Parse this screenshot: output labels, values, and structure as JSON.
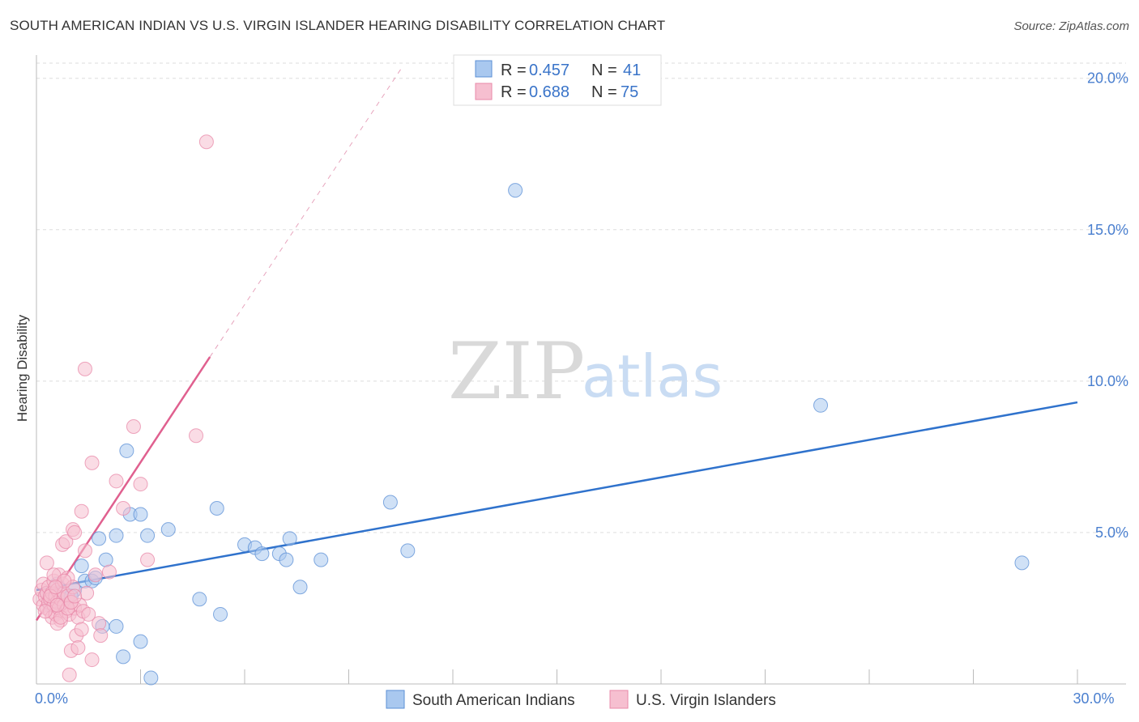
{
  "title": "SOUTH AMERICAN INDIAN VS U.S. VIRGIN ISLANDER HEARING DISABILITY CORRELATION CHART",
  "source": "Source: ZipAtlas.com",
  "watermark": {
    "zip": "ZIP",
    "atlas": "atlas"
  },
  "chart_data": {
    "type": "scatter",
    "ylabel": "Hearing Disability",
    "xlim": [
      0,
      30
    ],
    "ylim": [
      0,
      20.5
    ],
    "x_tick_labels": [
      {
        "value": 0,
        "label": "0.0%"
      },
      {
        "value": 30,
        "label": "30.0%"
      }
    ],
    "y_tick_labels": [
      {
        "value": 5,
        "label": "5.0%"
      },
      {
        "value": 10,
        "label": "10.0%"
      },
      {
        "value": 15,
        "label": "15.0%"
      },
      {
        "value": 20,
        "label": "20.0%"
      }
    ],
    "x_minor_ticks": [
      0,
      3,
      6,
      9,
      12,
      15,
      18,
      21,
      24,
      27,
      30
    ],
    "colors": {
      "blue_fill": "#a9c8ef",
      "blue_stroke": "#5b8fd6",
      "blue_line": "#2f72cc",
      "pink_fill": "#f6bfd0",
      "pink_stroke": "#e888a8",
      "pink_line": "#e0608f",
      "grid": "#dddddd",
      "axis_text": "#4a7fcf"
    },
    "legend": [
      {
        "r_label": "R =",
        "r_value": "0.457",
        "n_label": "N =",
        "n_value": "41"
      },
      {
        "r_label": "R =",
        "r_value": "0.688",
        "n_label": "N =",
        "n_value": "75"
      }
    ],
    "series": [
      {
        "name": "South American Indians",
        "color": "#a9c8ef",
        "trend": {
          "x0": 0,
          "y0": 3.1,
          "x1": 30,
          "y1": 9.3,
          "dashed_to": null
        },
        "points": [
          [
            0.3,
            3.0
          ],
          [
            0.4,
            2.6
          ],
          [
            0.5,
            2.9
          ],
          [
            0.6,
            3.3
          ],
          [
            0.7,
            2.7
          ],
          [
            0.8,
            3.0
          ],
          [
            1.1,
            3.1
          ],
          [
            1.4,
            3.4
          ],
          [
            1.3,
            3.9
          ],
          [
            1.6,
            3.4
          ],
          [
            1.7,
            3.5
          ],
          [
            1.8,
            4.8
          ],
          [
            1.9,
            1.9
          ],
          [
            2.0,
            4.1
          ],
          [
            2.3,
            1.9
          ],
          [
            2.3,
            4.9
          ],
          [
            2.5,
            0.9
          ],
          [
            2.6,
            7.7
          ],
          [
            2.7,
            5.6
          ],
          [
            3.0,
            5.6
          ],
          [
            3.0,
            1.4
          ],
          [
            3.2,
            4.9
          ],
          [
            3.3,
            0.2
          ],
          [
            3.8,
            5.1
          ],
          [
            4.7,
            2.8
          ],
          [
            5.2,
            5.8
          ],
          [
            5.3,
            2.3
          ],
          [
            6.0,
            4.6
          ],
          [
            6.3,
            4.5
          ],
          [
            6.5,
            4.3
          ],
          [
            7.0,
            4.3
          ],
          [
            7.2,
            4.1
          ],
          [
            7.3,
            4.8
          ],
          [
            7.6,
            3.2
          ],
          [
            8.2,
            4.1
          ],
          [
            10.2,
            6.0
          ],
          [
            10.7,
            4.4
          ],
          [
            13.8,
            16.3
          ],
          [
            22.6,
            9.2
          ],
          [
            28.4,
            4.0
          ],
          [
            1.0,
            2.9
          ]
        ]
      },
      {
        "name": "U.S. Virgin Islanders",
        "color": "#f6bfd0",
        "trend": {
          "x0": 0,
          "y0": 2.1,
          "x1": 5.0,
          "y1": 10.8,
          "dash_x1": 10.5,
          "dash_y1": 20.3
        },
        "points": [
          [
            0.1,
            2.8
          ],
          [
            0.15,
            3.1
          ],
          [
            0.2,
            2.6
          ],
          [
            0.2,
            3.3
          ],
          [
            0.25,
            2.9
          ],
          [
            0.3,
            2.5
          ],
          [
            0.3,
            3.0
          ],
          [
            0.35,
            2.7
          ],
          [
            0.35,
            3.2
          ],
          [
            0.4,
            2.4
          ],
          [
            0.4,
            2.8
          ],
          [
            0.45,
            3.0
          ],
          [
            0.45,
            2.2
          ],
          [
            0.5,
            2.6
          ],
          [
            0.5,
            3.4
          ],
          [
            0.55,
            2.9
          ],
          [
            0.55,
            2.3
          ],
          [
            0.6,
            2.7
          ],
          [
            0.6,
            3.1
          ],
          [
            0.65,
            2.5
          ],
          [
            0.65,
            3.6
          ],
          [
            0.7,
            2.8
          ],
          [
            0.7,
            2.1
          ],
          [
            0.75,
            3.3
          ],
          [
            0.75,
            4.6
          ],
          [
            0.8,
            2.6
          ],
          [
            0.8,
            3.0
          ],
          [
            0.85,
            2.4
          ],
          [
            0.85,
            4.7
          ],
          [
            0.9,
            2.9
          ],
          [
            0.9,
            3.5
          ],
          [
            0.95,
            2.3
          ],
          [
            0.95,
            0.3
          ],
          [
            1.0,
            2.7
          ],
          [
            1.0,
            1.1
          ],
          [
            1.05,
            5.1
          ],
          [
            1.05,
            3.2
          ],
          [
            1.1,
            2.5
          ],
          [
            1.1,
            5.0
          ],
          [
            1.15,
            1.6
          ],
          [
            1.2,
            2.2
          ],
          [
            1.2,
            1.2
          ],
          [
            1.25,
            2.6
          ],
          [
            1.3,
            5.7
          ],
          [
            1.3,
            1.8
          ],
          [
            1.35,
            2.4
          ],
          [
            1.4,
            4.4
          ],
          [
            1.4,
            10.4
          ],
          [
            1.45,
            3.0
          ],
          [
            1.5,
            2.3
          ],
          [
            1.6,
            7.3
          ],
          [
            1.6,
            0.8
          ],
          [
            1.7,
            3.6
          ],
          [
            1.8,
            2.0
          ],
          [
            1.85,
            1.6
          ],
          [
            2.1,
            3.7
          ],
          [
            2.3,
            6.7
          ],
          [
            2.5,
            5.8
          ],
          [
            2.8,
            8.5
          ],
          [
            3.0,
            6.6
          ],
          [
            3.2,
            4.1
          ],
          [
            4.6,
            8.2
          ],
          [
            4.9,
            17.9
          ],
          [
            0.3,
            4.0
          ],
          [
            0.5,
            3.6
          ],
          [
            0.6,
            2.0
          ],
          [
            0.7,
            2.2
          ],
          [
            0.8,
            3.4
          ],
          [
            0.9,
            2.5
          ],
          [
            1.0,
            2.7
          ],
          [
            0.4,
            2.9
          ],
          [
            0.6,
            2.6
          ],
          [
            0.25,
            2.4
          ],
          [
            0.55,
            3.2
          ],
          [
            1.1,
            2.9
          ]
        ]
      }
    ]
  }
}
